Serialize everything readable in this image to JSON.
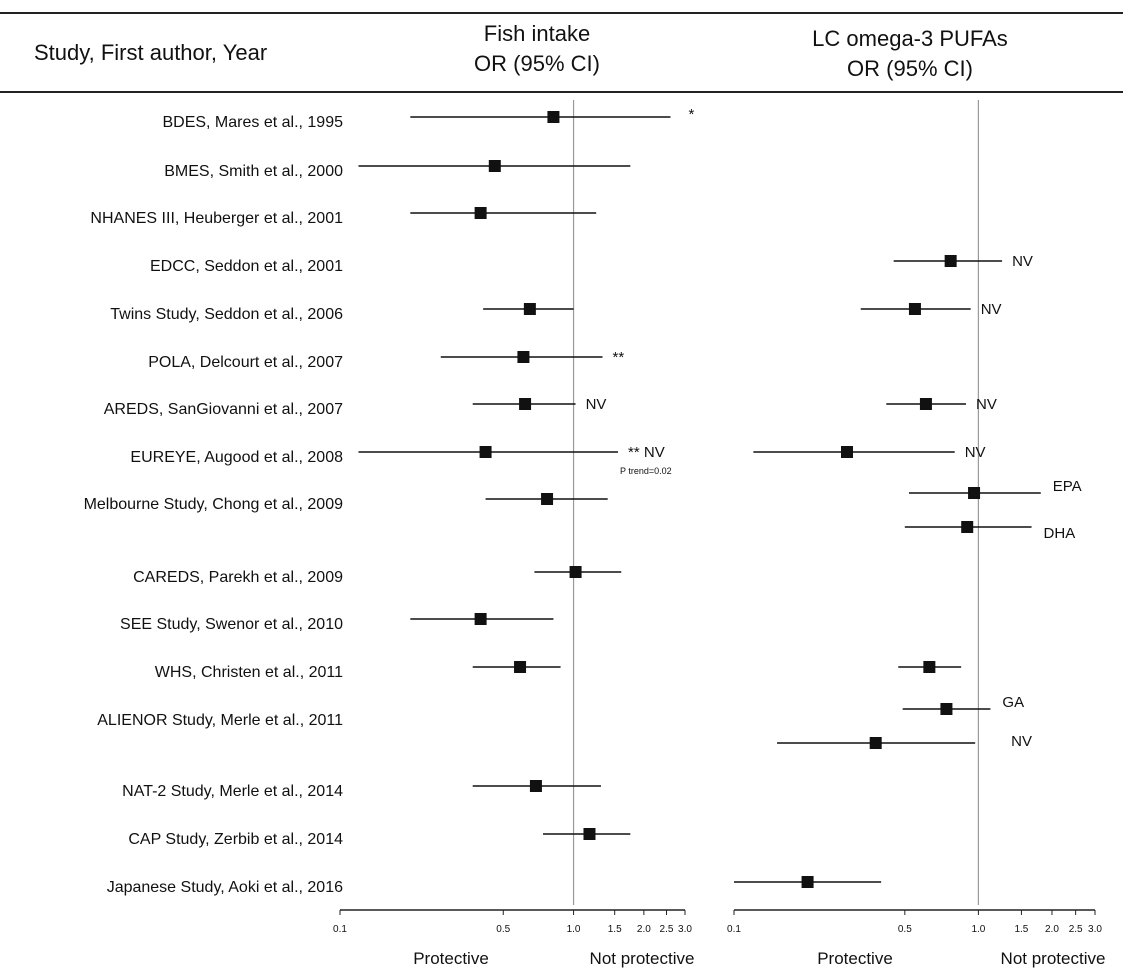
{
  "header": {
    "study_col": "Study, First author, Year",
    "left_title_1": "Fish intake",
    "left_title_2": "OR (95% CI)",
    "right_title_1": "LC omega-3 PUFAs",
    "right_title_2": "OR (95% CI)"
  },
  "footer": {
    "left_protective": "Protective",
    "left_not_protective": "Not protective",
    "right_protective": "Protective",
    "right_not_protective": "Not protective"
  },
  "chart_data": {
    "type": "forest",
    "scale": "log",
    "xlim": [
      0.1,
      3.0
    ],
    "ticks": [
      {
        "value": 0.1,
        "label": "0.1"
      },
      {
        "value": 0.5,
        "label": "0.5"
      },
      {
        "value": 1.0,
        "label": "1.0"
      },
      {
        "value": 1.5,
        "label": "1.5"
      },
      {
        "value": 2.0,
        "label": "2.0"
      },
      {
        "value": 2.5,
        "label": "2.5"
      },
      {
        "value": 3.0,
        "label": "3.0"
      }
    ],
    "reference_line": 1.0,
    "studies": [
      {
        "label": "BDES, Mares et al., 1995",
        "fish": [
          {
            "or": 0.82,
            "lo": 0.2,
            "hi": 2.6,
            "note": "*"
          }
        ],
        "pufa": []
      },
      {
        "label": "BMES, Smith et al., 2000",
        "fish": [
          {
            "or": 0.46,
            "lo": 0.12,
            "hi": 1.75,
            "note": ""
          }
        ],
        "pufa": []
      },
      {
        "label": "NHANES III, Heuberger et al., 2001",
        "fish": [
          {
            "or": 0.4,
            "lo": 0.2,
            "hi": 1.25,
            "note": ""
          }
        ],
        "pufa": []
      },
      {
        "label": "EDCC, Seddon et al., 2001",
        "fish": [],
        "pufa": [
          {
            "or": 0.77,
            "lo": 0.45,
            "hi": 1.25,
            "note": "NV"
          }
        ]
      },
      {
        "label": "Twins Study, Seddon et al., 2006",
        "fish": [
          {
            "or": 0.65,
            "lo": 0.41,
            "hi": 1.0,
            "note": ""
          }
        ],
        "pufa": [
          {
            "or": 0.55,
            "lo": 0.33,
            "hi": 0.93,
            "note": "NV"
          }
        ]
      },
      {
        "label": "POLA, Delcourt et al., 2007",
        "fish": [
          {
            "or": 0.61,
            "lo": 0.27,
            "hi": 1.33,
            "note": "**"
          }
        ],
        "pufa": []
      },
      {
        "label": "AREDS, SanGiovanni et al., 2007",
        "fish": [
          {
            "or": 0.62,
            "lo": 0.37,
            "hi": 1.02,
            "note": "NV"
          }
        ],
        "pufa": [
          {
            "or": 0.61,
            "lo": 0.42,
            "hi": 0.89,
            "note": "NV"
          }
        ]
      },
      {
        "label": "EUREYE, Augood et al., 2008",
        "fish": [
          {
            "or": 0.42,
            "lo": 0.12,
            "hi": 1.55,
            "note": "** NV",
            "subnote": "P trend=0.02"
          }
        ],
        "pufa": [
          {
            "or": 0.29,
            "lo": 0.12,
            "hi": 0.8,
            "note": "NV"
          }
        ]
      },
      {
        "label": "Melbourne Study, Chong et al., 2009",
        "fish": [
          {
            "or": 0.77,
            "lo": 0.42,
            "hi": 1.4,
            "note": ""
          }
        ],
        "pufa": [
          {
            "or": 0.96,
            "lo": 0.52,
            "hi": 1.8,
            "note": "EPA"
          },
          {
            "or": 0.9,
            "lo": 0.5,
            "hi": 1.65,
            "note": "DHA"
          }
        ]
      },
      {
        "label": "CAREDS, Parekh et al., 2009",
        "fish": [
          {
            "or": 1.02,
            "lo": 0.68,
            "hi": 1.6,
            "note": ""
          }
        ],
        "pufa": []
      },
      {
        "label": "SEE Study, Swenor et al., 2010",
        "fish": [
          {
            "or": 0.4,
            "lo": 0.2,
            "hi": 0.82,
            "note": ""
          }
        ],
        "pufa": []
      },
      {
        "label": "WHS, Christen et al., 2011",
        "fish": [
          {
            "or": 0.59,
            "lo": 0.37,
            "hi": 0.88,
            "note": ""
          }
        ],
        "pufa": [
          {
            "or": 0.63,
            "lo": 0.47,
            "hi": 0.85,
            "note": ""
          }
        ]
      },
      {
        "label": "ALIENOR Study, Merle et al., 2011",
        "fish": [],
        "pufa": [
          {
            "or": 0.74,
            "lo": 0.49,
            "hi": 1.12,
            "note": "GA"
          },
          {
            "or": 0.38,
            "lo": 0.15,
            "hi": 0.97,
            "note": "NV"
          }
        ]
      },
      {
        "label": "NAT-2 Study, Merle et al., 2014",
        "fish": [
          {
            "or": 0.69,
            "lo": 0.37,
            "hi": 1.31,
            "note": ""
          }
        ],
        "pufa": []
      },
      {
        "label": "CAP Study, Zerbib et al., 2014",
        "fish": [
          {
            "or": 1.17,
            "lo": 0.74,
            "hi": 1.75,
            "note": ""
          }
        ],
        "pufa": []
      },
      {
        "label": "Japanese Study, Aoki et al., 2016",
        "fish": [],
        "pufa": [
          {
            "or": 0.2,
            "lo": 0.1,
            "hi": 0.4,
            "note": ""
          }
        ]
      }
    ]
  }
}
